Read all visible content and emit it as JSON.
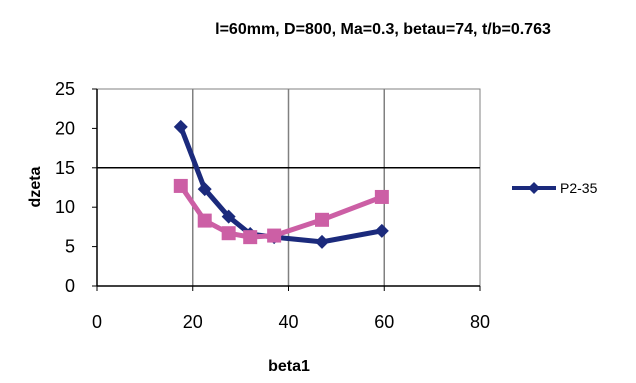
{
  "chart_data": {
    "type": "line",
    "title": "l=60mm, D=800, Ma=0.3, betau=74, t/b=0.763",
    "xlabel": "beta1",
    "ylabel": "dzeta",
    "xlim": [
      0,
      80
    ],
    "ylim": [
      0,
      25
    ],
    "xticks": [
      "0",
      "20",
      "40",
      "60",
      "80"
    ],
    "yticks": [
      "0",
      "5",
      "10",
      "15",
      "20",
      "25"
    ],
    "grid": "vertical lines at x ticks, horizontal line at y=15",
    "legend_position": "right",
    "series": [
      {
        "name": "P2-35",
        "color": "#1b2a7c",
        "marker": "diamond",
        "x": [
          17.5,
          22.5,
          27.5,
          32,
          37,
          47,
          59.5
        ],
        "y": [
          20.2,
          12.3,
          8.8,
          6.6,
          6.2,
          5.6,
          7.0
        ]
      },
      {
        "name": "",
        "color": "#cc5fa5",
        "marker": "square",
        "x": [
          17.5,
          22.5,
          27.5,
          32,
          37,
          47,
          59.5
        ],
        "y": [
          12.7,
          8.3,
          6.7,
          6.2,
          6.4,
          8.4,
          11.3
        ]
      }
    ]
  }
}
